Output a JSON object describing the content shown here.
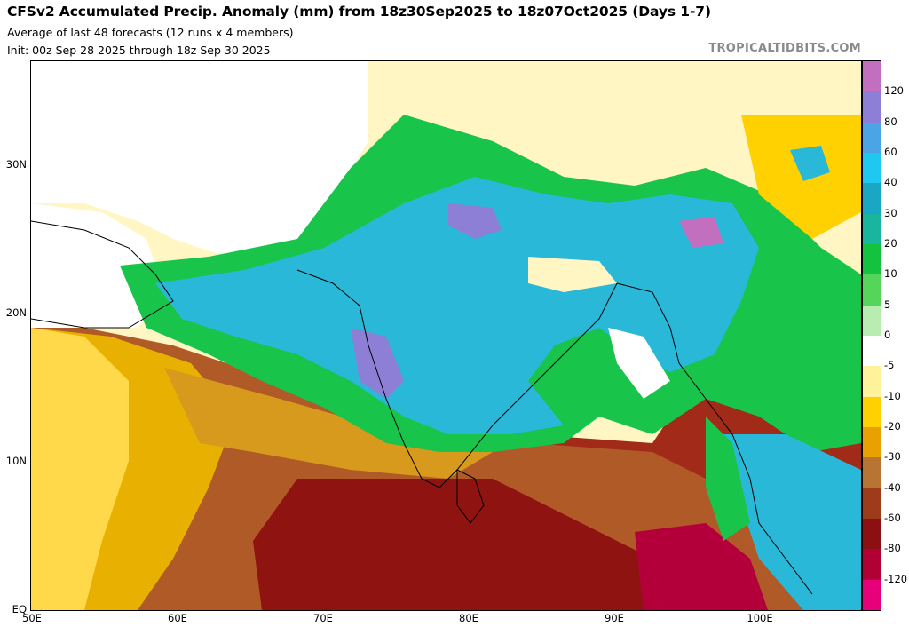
{
  "header": {
    "title": "CFSv2 Accumulated Precip. Anomaly (mm) from 18z30Sep2025 to 18z07Oct2025 (Days 1-7)",
    "subtitle1": "Average of last 48 forecasts (12 runs x 4 members)",
    "subtitle2": "Init: 00z Sep 28 2025 through 18z Sep 30 2025",
    "credit": "TROPICALTIDBITS.COM"
  },
  "axes": {
    "lat_labels": [
      "30N",
      "20N",
      "10N",
      "EQ"
    ],
    "lat_values": [
      30,
      20,
      10,
      0
    ],
    "lon_labels": [
      "50E",
      "60E",
      "70E",
      "80E",
      "90E",
      "100E"
    ],
    "lon_values": [
      50,
      60,
      70,
      80,
      90,
      100
    ],
    "lon_range": [
      50,
      107
    ],
    "lat_range": [
      0,
      37
    ]
  },
  "colorbar": {
    "labels": [
      "120",
      "80",
      "60",
      "40",
      "30",
      "20",
      "10",
      "5",
      "0",
      "-5",
      "-10",
      "-20",
      "-30",
      "-40",
      "-60",
      "-80",
      "-120"
    ],
    "colors": [
      "#c36fc0",
      "#8d7fd6",
      "#4aa4e6",
      "#1ec8f0",
      "#1aa7c4",
      "#19b59e",
      "#13c340",
      "#55d55a",
      "#b8ecb0",
      "#ffffff",
      "#fff29a",
      "#ffd100",
      "#e8a100",
      "#b87433",
      "#9e3b1b",
      "#8c0f12",
      "#b00034",
      "#e8007a"
    ]
  },
  "map": {
    "legend_colors": {
      "positive_strong": "#8d7fd6",
      "positive": "#29b8d8",
      "positive_weak": "#18c44a",
      "neutral": "#ffffff",
      "negative_weak": "#ffd100",
      "negative": "#c8782c",
      "negative_strong": "#9a1410"
    }
  }
}
